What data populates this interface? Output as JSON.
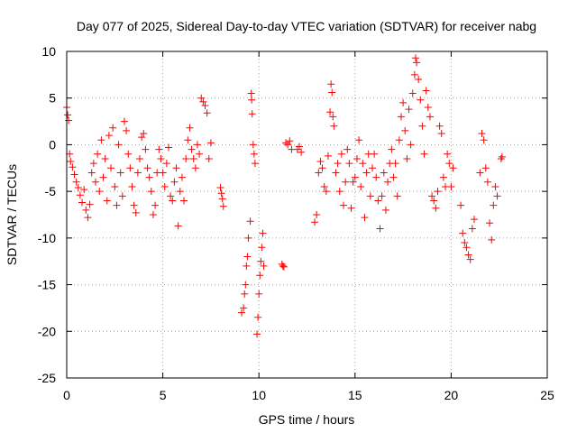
{
  "chart_data": {
    "type": "scatter",
    "title": "Day 077 of 2025, Sidereal Day-to-day VTEC variation (SDTVAR) for receiver nabg",
    "xlabel": "GPS time / hours",
    "ylabel": "SDTVAR / TECUs",
    "xlim": [
      0,
      25
    ],
    "ylim": [
      -25,
      10
    ],
    "xticks": [
      "0",
      "5",
      "10",
      "15",
      "20",
      "25"
    ],
    "yticks": [
      "10",
      "5",
      "0",
      "-5",
      "-10",
      "-15",
      "-20",
      "-25"
    ],
    "grid": true,
    "marker": "+",
    "colors": {
      "series": "#ff0000",
      "grid": "#a0a0a0",
      "frame": "#000000"
    },
    "series": [
      {
        "name": "SDTVAR",
        "segments": [
          {
            "x": [
              0.0,
              0.05,
              0.1,
              0.15,
              0.2,
              0.3,
              0.4,
              0.5,
              0.6,
              0.7,
              0.8,
              0.9,
              1.0,
              1.1,
              1.2
            ],
            "y": [
              4.0,
              3.2,
              2.6,
              -1.0,
              -1.8,
              -2.4,
              -3.2,
              -4.0,
              -4.6,
              -5.4,
              -6.2,
              -4.8,
              -7.0,
              -7.8,
              -6.4
            ]
          },
          {
            "x": [
              1.3,
              1.4,
              1.5,
              1.6,
              1.7,
              1.8,
              1.9,
              2.0,
              2.1,
              2.2,
              2.3,
              2.4,
              2.5,
              2.6,
              2.7,
              2.8,
              2.9
            ],
            "y": [
              -3.0,
              -2.0,
              -4.0,
              -1.0,
              -5.0,
              0.5,
              -3.5,
              -1.5,
              -6.0,
              1.0,
              -2.5,
              1.8,
              -4.5,
              -6.5,
              0.0,
              -3.0,
              -5.5
            ]
          },
          {
            "x": [
              3.0,
              3.1,
              3.2,
              3.3,
              3.4,
              3.5,
              3.6,
              3.7,
              3.8,
              3.9,
              4.0,
              4.1,
              4.2,
              4.3,
              4.4,
              4.5,
              4.6,
              4.7
            ],
            "y": [
              2.5,
              1.5,
              -1.0,
              -2.5,
              -4.5,
              -6.5,
              -7.3,
              -3.0,
              -1.5,
              0.8,
              1.2,
              -0.5,
              -2.5,
              -3.5,
              -5.0,
              -7.5,
              -6.5,
              -3.0
            ]
          },
          {
            "x": [
              4.8,
              4.9,
              5.0,
              5.1,
              5.2,
              5.3,
              5.4,
              5.5,
              5.6,
              5.7,
              5.8,
              5.9,
              6.0,
              6.1,
              6.2,
              6.3,
              6.4,
              6.5
            ],
            "y": [
              -0.5,
              -1.5,
              -3.0,
              -4.5,
              -2.0,
              -0.3,
              -5.5,
              -6.0,
              -4.0,
              -2.5,
              -8.7,
              -5.0,
              -3.5,
              -6.0,
              -1.5,
              0.5,
              1.8,
              -0.5
            ]
          },
          {
            "x": [
              6.6,
              6.7,
              6.8,
              6.9,
              7.0,
              7.1,
              7.2,
              7.3,
              7.4,
              7.5
            ],
            "y": [
              -1.5,
              -2.5,
              0.0,
              -1.0,
              5.0,
              4.6,
              4.2,
              3.4,
              -1.5,
              0.2
            ]
          },
          {
            "x": [
              8.0,
              8.05,
              8.1,
              8.15
            ],
            "y": [
              -4.6,
              -5.2,
              -5.8,
              -6.6
            ]
          },
          {
            "x": [
              9.1,
              9.2,
              9.25,
              9.3,
              9.35,
              9.4,
              9.45,
              9.55
            ],
            "y": [
              -18.0,
              -17.5,
              -16.0,
              -15.0,
              -13.0,
              -12.0,
              -10.0,
              -8.2
            ]
          },
          {
            "x": [
              9.6,
              9.62,
              9.65,
              9.7,
              9.75,
              9.8
            ],
            "y": [
              5.5,
              4.8,
              3.3,
              0.0,
              -1.0,
              -2.0
            ]
          },
          {
            "x": [
              9.9,
              9.95,
              10.0,
              10.05,
              10.1,
              10.15,
              10.2,
              10.25
            ],
            "y": [
              -20.3,
              -18.5,
              -16.0,
              -14.0,
              -12.5,
              -11.0,
              -9.5,
              -13.0
            ]
          },
          {
            "x": [
              11.2,
              11.25,
              11.3
            ],
            "y": [
              -12.8,
              -13.0,
              -13.1
            ]
          },
          {
            "x": [
              11.4,
              11.5,
              11.6,
              11.7,
              12.0,
              12.1,
              12.2
            ],
            "y": [
              0.2,
              0.0,
              0.4,
              -0.5,
              -0.5,
              -0.2,
              -0.8
            ]
          },
          {
            "x": [
              12.9,
              13.0,
              13.1,
              13.2,
              13.3,
              13.4,
              13.5,
              13.6,
              13.7
            ],
            "y": [
              -8.3,
              -7.5,
              -3.0,
              -1.8,
              -2.5,
              -4.5,
              -5.0,
              -1.2,
              3.5
            ]
          },
          {
            "x": [
              13.75,
              13.8,
              13.85,
              13.9
            ],
            "y": [
              6.5,
              5.6,
              3.0,
              2.0
            ]
          },
          {
            "x": [
              14.0,
              14.1,
              14.2,
              14.3,
              14.4,
              14.5,
              14.6,
              14.7,
              14.8,
              14.9,
              15.0,
              15.1,
              15.2,
              15.3,
              15.4,
              15.5,
              15.6,
              15.7,
              15.8,
              15.9
            ],
            "y": [
              -3.0,
              -2.0,
              -5.0,
              -1.0,
              -6.5,
              -4.0,
              -0.5,
              -2.0,
              -6.8,
              -4.0,
              -3.5,
              -1.5,
              0.5,
              -4.5,
              -2.0,
              -7.8,
              -3.0,
              -1.0,
              -5.5,
              -2.5
            ]
          },
          {
            "x": [
              16.0,
              16.1,
              16.2,
              16.3,
              16.4,
              16.5,
              16.6,
              16.7,
              16.8,
              16.9,
              17.0,
              17.1,
              17.2,
              17.3,
              17.4,
              17.5,
              17.6,
              17.7,
              17.8,
              17.9
            ],
            "y": [
              -1.0,
              -3.5,
              -6.0,
              -9.0,
              -5.5,
              -3.0,
              -7.0,
              -4.0,
              -2.0,
              -0.5,
              -3.5,
              -2.0,
              -5.5,
              0.5,
              3.0,
              4.5,
              1.5,
              -1.5,
              3.8,
              0.0
            ]
          },
          {
            "x": [
              18.0,
              18.1,
              18.15,
              18.2,
              18.3,
              18.4,
              18.5,
              18.6,
              18.7,
              18.8,
              18.9,
              19.0,
              19.1,
              19.2,
              19.3,
              19.4,
              19.5,
              19.6,
              19.7,
              19.8,
              19.9,
              20.0,
              20.1
            ],
            "y": [
              5.5,
              7.5,
              9.3,
              8.8,
              7.0,
              4.8,
              2.0,
              -1.0,
              5.8,
              4.0,
              3.0,
              -5.5,
              -6.0,
              -6.8,
              -5.0,
              2.0,
              1.2,
              -3.5,
              -4.5,
              -1.0,
              -2.0,
              -4.5,
              -2.5
            ]
          },
          {
            "x": [
              20.5,
              20.6,
              20.7,
              20.8,
              20.9,
              21.0,
              21.1,
              21.2
            ],
            "y": [
              -6.5,
              -9.5,
              -10.5,
              -11.0,
              -11.8,
              -12.3,
              -9.0,
              -8.0
            ]
          },
          {
            "x": [
              21.5,
              21.6,
              21.7,
              21.8,
              21.9,
              22.0,
              22.1,
              22.2,
              22.3,
              22.4
            ],
            "y": [
              -3.0,
              1.2,
              0.5,
              -2.5,
              -4.0,
              -8.4,
              -10.2,
              -6.5,
              -4.5,
              -5.5
            ]
          },
          {
            "x": [
              22.6,
              22.65
            ],
            "y": [
              -1.5,
              -1.3
            ]
          }
        ]
      }
    ]
  }
}
